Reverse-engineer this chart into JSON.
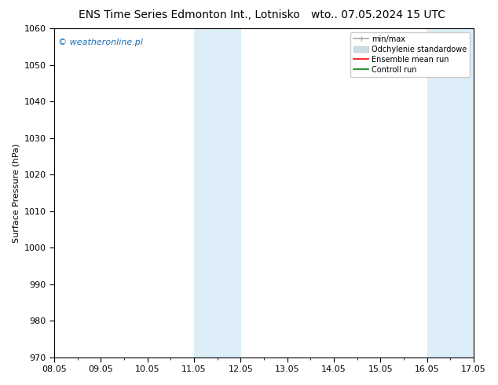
{
  "title_left": "ENS Time Series Edmonton Int., Lotnisko",
  "title_right": "wto.. 07.05.2024 15 UTC",
  "ylabel": "Surface Pressure (hPa)",
  "ylim": [
    970,
    1060
  ],
  "yticks": [
    970,
    980,
    990,
    1000,
    1010,
    1020,
    1030,
    1040,
    1050,
    1060
  ],
  "xtick_labels": [
    "08.05",
    "09.05",
    "10.05",
    "11.05",
    "12.05",
    "13.05",
    "14.05",
    "15.05",
    "16.05",
    "17.05"
  ],
  "xtick_positions": [
    0,
    1,
    2,
    3,
    4,
    5,
    6,
    7,
    8,
    9
  ],
  "xlim": [
    0,
    9
  ],
  "shaded_bands": [
    {
      "xmin": 3.0,
      "xmax": 4.0,
      "color": "#ddeef8"
    },
    {
      "xmin": 8.0,
      "xmax": 9.0,
      "color": "#ddeef8"
    }
  ],
  "watermark": "© weatheronline.pl",
  "watermark_color": "#1a6fba",
  "bg_color": "#ffffff",
  "title_fontsize": 10,
  "axis_label_fontsize": 8,
  "tick_fontsize": 8,
  "watermark_fontsize": 8,
  "legend_gray": "#aaaaaa",
  "legend_lightblue": "#ccdde8"
}
